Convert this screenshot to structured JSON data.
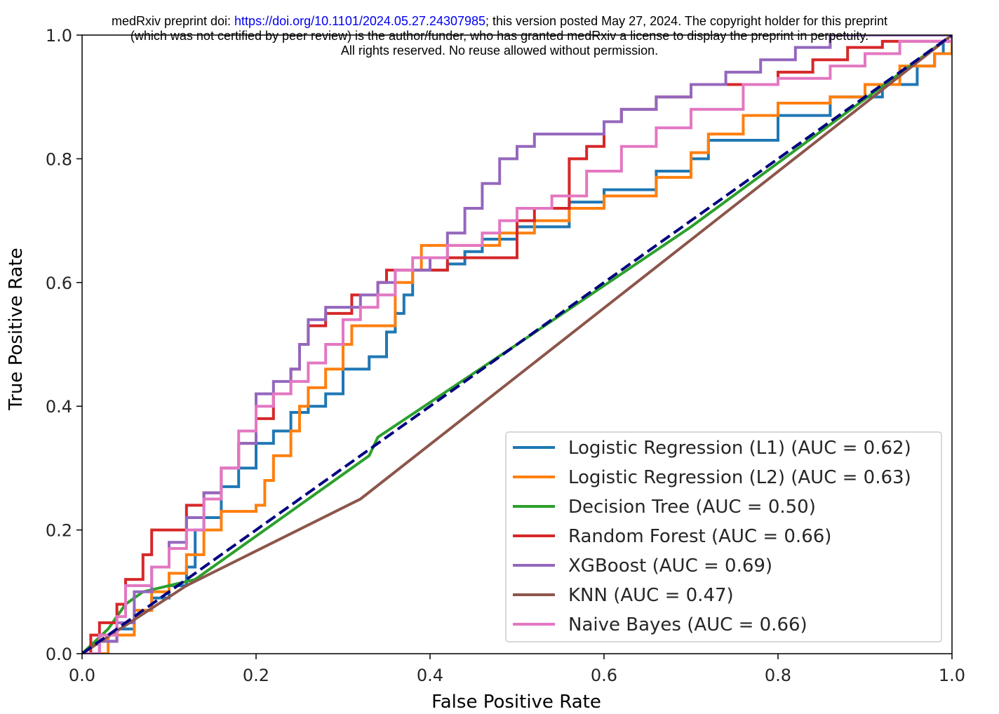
{
  "notice": {
    "line1_prefix": "medRxiv preprint doi: ",
    "line1_link": "https://doi.org/10.1101/2024.05.27.24307985",
    "line1_suffix": "; this version posted May 27, 2024. The copyright holder for this preprint",
    "line2": "(which was not certified by peer review) is the author/funder, who has granted medRxiv a license to display the preprint in perpetuity.",
    "line3": "All rights reserved. No reuse allowed without permission."
  },
  "chart_data": {
    "type": "line",
    "title": "",
    "xlabel": "False Positive Rate",
    "ylabel": "True Positive Rate",
    "xlim": [
      0.0,
      1.0
    ],
    "ylim": [
      0.0,
      1.0
    ],
    "xticks": [
      "0.0",
      "0.2",
      "0.4",
      "0.6",
      "0.8",
      "1.0"
    ],
    "yticks": [
      "0.0",
      "0.2",
      "0.4",
      "0.6",
      "0.8",
      "1.0"
    ],
    "grid": false,
    "legend_position": "lower-right",
    "reference_line": {
      "x": [
        0,
        1
      ],
      "y": [
        0,
        1
      ],
      "color": "#000080",
      "style": "dashed"
    },
    "series": [
      {
        "name": "Logistic Regression (L1) (AUC = 0.62)",
        "color": "#1f77b4",
        "step": true,
        "points": [
          [
            0,
            0
          ],
          [
            0.02,
            0.02
          ],
          [
            0.04,
            0.04
          ],
          [
            0.06,
            0.07
          ],
          [
            0.08,
            0.09
          ],
          [
            0.1,
            0.11
          ],
          [
            0.12,
            0.14
          ],
          [
            0.13,
            0.2
          ],
          [
            0.14,
            0.22
          ],
          [
            0.16,
            0.27
          ],
          [
            0.18,
            0.3
          ],
          [
            0.2,
            0.34
          ],
          [
            0.22,
            0.36
          ],
          [
            0.24,
            0.39
          ],
          [
            0.26,
            0.4
          ],
          [
            0.28,
            0.42
          ],
          [
            0.3,
            0.46
          ],
          [
            0.32,
            0.46
          ],
          [
            0.33,
            0.48
          ],
          [
            0.35,
            0.52
          ],
          [
            0.36,
            0.55
          ],
          [
            0.37,
            0.58
          ],
          [
            0.38,
            0.62
          ],
          [
            0.42,
            0.63
          ],
          [
            0.44,
            0.65
          ],
          [
            0.46,
            0.67
          ],
          [
            0.5,
            0.69
          ],
          [
            0.56,
            0.73
          ],
          [
            0.6,
            0.75
          ],
          [
            0.66,
            0.78
          ],
          [
            0.7,
            0.8
          ],
          [
            0.72,
            0.83
          ],
          [
            0.8,
            0.87
          ],
          [
            0.86,
            0.9
          ],
          [
            0.92,
            0.92
          ],
          [
            0.96,
            0.95
          ],
          [
            0.98,
            0.97
          ],
          [
            0.99,
            0.99
          ],
          [
            1.0,
            1.0
          ]
        ]
      },
      {
        "name": "Logistic Regression (L2) (AUC = 0.63)",
        "color": "#ff7f0e",
        "step": true,
        "points": [
          [
            0,
            0
          ],
          [
            0.03,
            0.03
          ],
          [
            0.06,
            0.07
          ],
          [
            0.08,
            0.1
          ],
          [
            0.1,
            0.13
          ],
          [
            0.12,
            0.16
          ],
          [
            0.14,
            0.2
          ],
          [
            0.16,
            0.23
          ],
          [
            0.2,
            0.24
          ],
          [
            0.21,
            0.28
          ],
          [
            0.22,
            0.32
          ],
          [
            0.24,
            0.36
          ],
          [
            0.25,
            0.4
          ],
          [
            0.26,
            0.43
          ],
          [
            0.28,
            0.46
          ],
          [
            0.3,
            0.5
          ],
          [
            0.31,
            0.53
          ],
          [
            0.34,
            0.53
          ],
          [
            0.36,
            0.6
          ],
          [
            0.38,
            0.62
          ],
          [
            0.39,
            0.66
          ],
          [
            0.44,
            0.66
          ],
          [
            0.48,
            0.68
          ],
          [
            0.52,
            0.7
          ],
          [
            0.56,
            0.72
          ],
          [
            0.6,
            0.74
          ],
          [
            0.66,
            0.77
          ],
          [
            0.7,
            0.81
          ],
          [
            0.72,
            0.84
          ],
          [
            0.76,
            0.87
          ],
          [
            0.8,
            0.89
          ],
          [
            0.86,
            0.9
          ],
          [
            0.9,
            0.92
          ],
          [
            0.94,
            0.95
          ],
          [
            0.98,
            0.97
          ],
          [
            1.0,
            1.0
          ]
        ]
      },
      {
        "name": "Decision Tree (AUC = 0.50)",
        "color": "#2ca02c",
        "step": false,
        "points": [
          [
            0,
            0
          ],
          [
            0.03,
            0.04
          ],
          [
            0.05,
            0.08
          ],
          [
            0.07,
            0.1
          ],
          [
            0.1,
            0.11
          ],
          [
            0.13,
            0.12
          ],
          [
            0.33,
            0.32
          ],
          [
            0.34,
            0.35
          ],
          [
            0.5,
            0.5
          ],
          [
            0.7,
            0.69
          ],
          [
            1.0,
            1.0
          ]
        ]
      },
      {
        "name": "Random Forest (AUC = 0.66)",
        "color": "#d62728",
        "step": true,
        "points": [
          [
            0,
            0
          ],
          [
            0.01,
            0.03
          ],
          [
            0.02,
            0.05
          ],
          [
            0.04,
            0.08
          ],
          [
            0.05,
            0.12
          ],
          [
            0.07,
            0.16
          ],
          [
            0.08,
            0.2
          ],
          [
            0.1,
            0.2
          ],
          [
            0.12,
            0.24
          ],
          [
            0.14,
            0.26
          ],
          [
            0.16,
            0.3
          ],
          [
            0.18,
            0.34
          ],
          [
            0.2,
            0.38
          ],
          [
            0.22,
            0.42
          ],
          [
            0.24,
            0.46
          ],
          [
            0.25,
            0.5
          ],
          [
            0.26,
            0.53
          ],
          [
            0.28,
            0.55
          ],
          [
            0.3,
            0.55
          ],
          [
            0.31,
            0.58
          ],
          [
            0.34,
            0.6
          ],
          [
            0.35,
            0.62
          ],
          [
            0.38,
            0.62
          ],
          [
            0.42,
            0.64
          ],
          [
            0.48,
            0.64
          ],
          [
            0.5,
            0.7
          ],
          [
            0.52,
            0.72
          ],
          [
            0.56,
            0.8
          ],
          [
            0.58,
            0.82
          ],
          [
            0.6,
            0.86
          ],
          [
            0.62,
            0.88
          ],
          [
            0.66,
            0.9
          ],
          [
            0.7,
            0.92
          ],
          [
            0.74,
            0.92
          ],
          [
            0.8,
            0.94
          ],
          [
            0.84,
            0.96
          ],
          [
            0.88,
            0.98
          ],
          [
            0.92,
            0.99
          ],
          [
            1.0,
            1.0
          ]
        ]
      },
      {
        "name": "XGBoost (AUC = 0.69)",
        "color": "#9467bd",
        "step": true,
        "points": [
          [
            0,
            0
          ],
          [
            0.02,
            0.02
          ],
          [
            0.04,
            0.05
          ],
          [
            0.06,
            0.1
          ],
          [
            0.08,
            0.14
          ],
          [
            0.1,
            0.18
          ],
          [
            0.12,
            0.22
          ],
          [
            0.14,
            0.26
          ],
          [
            0.16,
            0.3
          ],
          [
            0.18,
            0.34
          ],
          [
            0.2,
            0.42
          ],
          [
            0.22,
            0.44
          ],
          [
            0.24,
            0.46
          ],
          [
            0.25,
            0.5
          ],
          [
            0.26,
            0.54
          ],
          [
            0.28,
            0.56
          ],
          [
            0.3,
            0.56
          ],
          [
            0.32,
            0.58
          ],
          [
            0.34,
            0.6
          ],
          [
            0.36,
            0.62
          ],
          [
            0.4,
            0.64
          ],
          [
            0.42,
            0.68
          ],
          [
            0.44,
            0.72
          ],
          [
            0.46,
            0.76
          ],
          [
            0.48,
            0.8
          ],
          [
            0.5,
            0.82
          ],
          [
            0.52,
            0.84
          ],
          [
            0.6,
            0.86
          ],
          [
            0.62,
            0.88
          ],
          [
            0.66,
            0.9
          ],
          [
            0.7,
            0.92
          ],
          [
            0.74,
            0.94
          ],
          [
            0.78,
            0.96
          ],
          [
            0.82,
            0.98
          ],
          [
            0.86,
            1.0
          ],
          [
            1.0,
            1.0
          ]
        ]
      },
      {
        "name": "KNN (AUC = 0.47)",
        "color": "#8c564b",
        "step": false,
        "points": [
          [
            0,
            0
          ],
          [
            0.12,
            0.11
          ],
          [
            0.32,
            0.25
          ],
          [
            1.0,
            1.0
          ]
        ]
      },
      {
        "name": "Naive Bayes (AUC = 0.66)",
        "color": "#e377c2",
        "step": true,
        "points": [
          [
            0,
            0
          ],
          [
            0.02,
            0.03
          ],
          [
            0.04,
            0.06
          ],
          [
            0.05,
            0.11
          ],
          [
            0.08,
            0.14
          ],
          [
            0.1,
            0.17
          ],
          [
            0.12,
            0.2
          ],
          [
            0.14,
            0.25
          ],
          [
            0.16,
            0.3
          ],
          [
            0.18,
            0.36
          ],
          [
            0.2,
            0.4
          ],
          [
            0.22,
            0.42
          ],
          [
            0.24,
            0.44
          ],
          [
            0.26,
            0.47
          ],
          [
            0.28,
            0.5
          ],
          [
            0.3,
            0.54
          ],
          [
            0.32,
            0.56
          ],
          [
            0.34,
            0.58
          ],
          [
            0.36,
            0.62
          ],
          [
            0.38,
            0.64
          ],
          [
            0.42,
            0.66
          ],
          [
            0.46,
            0.68
          ],
          [
            0.48,
            0.7
          ],
          [
            0.5,
            0.72
          ],
          [
            0.54,
            0.74
          ],
          [
            0.58,
            0.78
          ],
          [
            0.62,
            0.82
          ],
          [
            0.66,
            0.85
          ],
          [
            0.7,
            0.88
          ],
          [
            0.76,
            0.92
          ],
          [
            0.8,
            0.93
          ],
          [
            0.86,
            0.95
          ],
          [
            0.9,
            0.97
          ],
          [
            0.94,
            0.99
          ],
          [
            1.0,
            1.0
          ]
        ]
      }
    ]
  }
}
